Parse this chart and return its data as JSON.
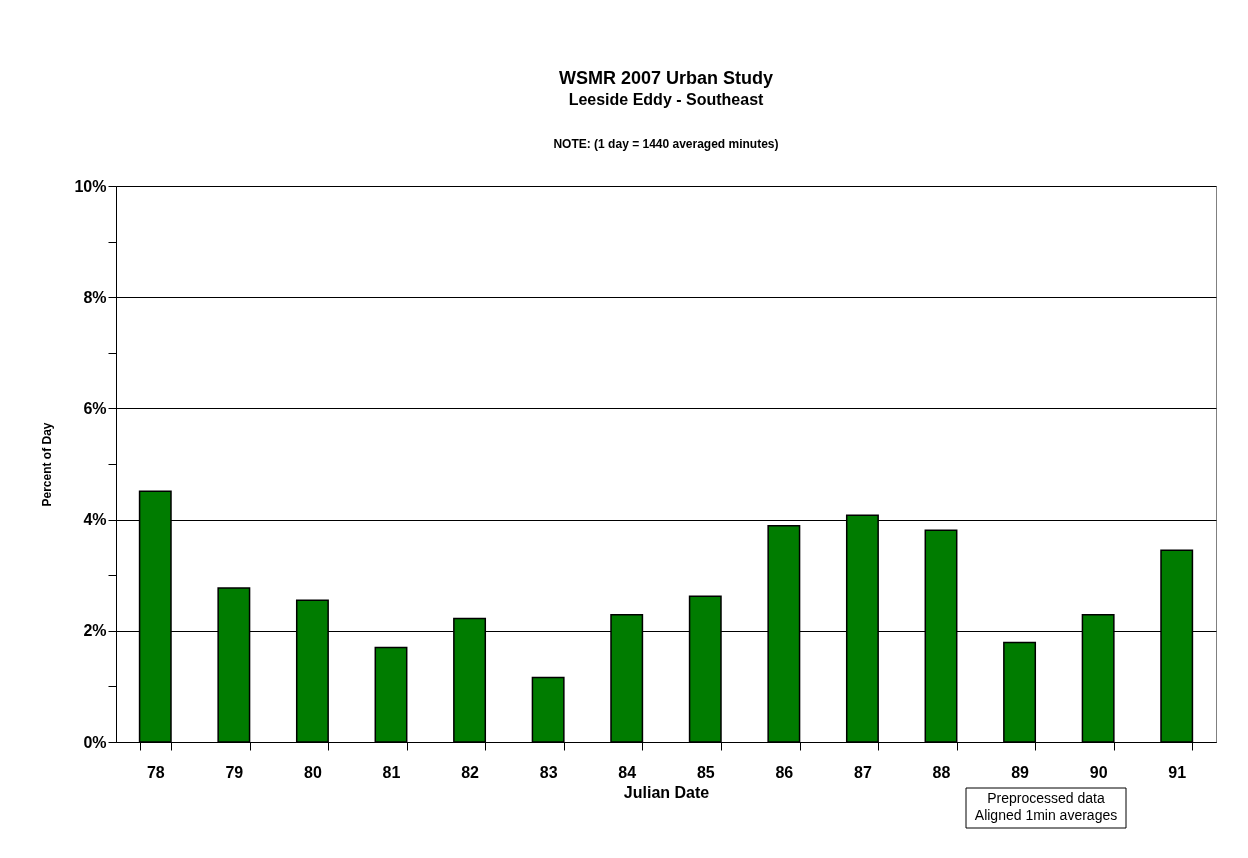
{
  "chart_data": {
    "type": "bar",
    "title": "WSMR 2007 Urban Study",
    "subtitle": "Leeside Eddy - Southeast",
    "annotations": [
      "NOTE:  (1 day = 1440 averaged minutes)",
      "Preprocessed data\nAligned 1min averages"
    ],
    "xlabel": "Julian Date",
    "ylabel": "Percent of Day",
    "categories": [
      "78",
      "79",
      "80",
      "81",
      "82",
      "83",
      "84",
      "85",
      "86",
      "87",
      "88",
      "89",
      "90",
      "91"
    ],
    "values": [
      4.51,
      2.77,
      2.55,
      1.7,
      2.22,
      1.16,
      2.29,
      2.62,
      3.89,
      4.08,
      3.81,
      1.79,
      2.29,
      3.45
    ],
    "color": "#007c00",
    "ylim": [
      0,
      10
    ],
    "yticks": [
      {
        "value": 0,
        "label": "0%"
      },
      {
        "value": 1,
        "label": null
      },
      {
        "value": 2,
        "label": "2%"
      },
      {
        "value": 3,
        "label": null
      },
      {
        "value": 4,
        "label": "4%"
      },
      {
        "value": 5,
        "label": null
      },
      {
        "value": 6,
        "label": "6%"
      },
      {
        "value": 7,
        "label": null
      },
      {
        "value": 8,
        "label": "8%"
      },
      {
        "value": 9,
        "label": null
      },
      {
        "value": 10,
        "label": "10%"
      }
    ],
    "grid": "y"
  }
}
